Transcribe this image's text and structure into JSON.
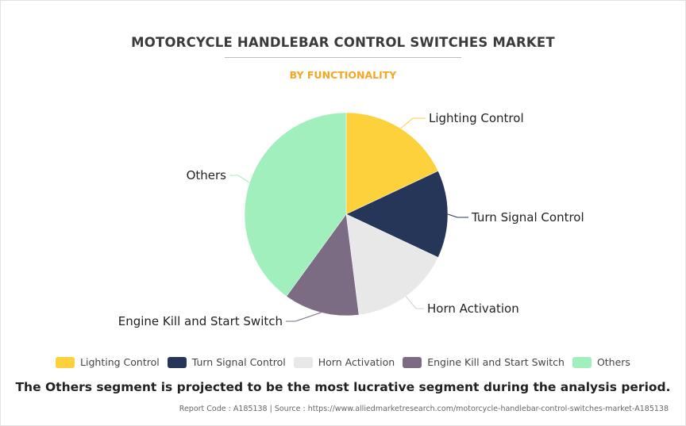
{
  "title": "MOTORCYCLE HANDLEBAR CONTROL SWITCHES MARKET",
  "subtitle": "BY FUNCTIONALITY",
  "headline": "The Others segment is projected to be the most lucrative segment during the analysis period.",
  "footer": "Report Code : A185138  |  Source : https://www.alliedmarketresearch.com/motorcycle-handlebar-control-switches-market-A185138",
  "chart_data": {
    "type": "pie",
    "start_angle_deg": 0,
    "direction": "clockwise",
    "legend_position": "bottom",
    "slices": [
      {
        "label": "Lighting Control",
        "value": 18,
        "color": "#fdd13b"
      },
      {
        "label": "Turn Signal Control",
        "value": 14,
        "color": "#253658"
      },
      {
        "label": "Horn Activation",
        "value": 16,
        "color": "#e8e8e8"
      },
      {
        "label": "Engine Kill and Start Switch",
        "value": 12,
        "color": "#7b6c84"
      },
      {
        "label": "Others",
        "value": 40,
        "color": "#a1efbd"
      }
    ]
  }
}
